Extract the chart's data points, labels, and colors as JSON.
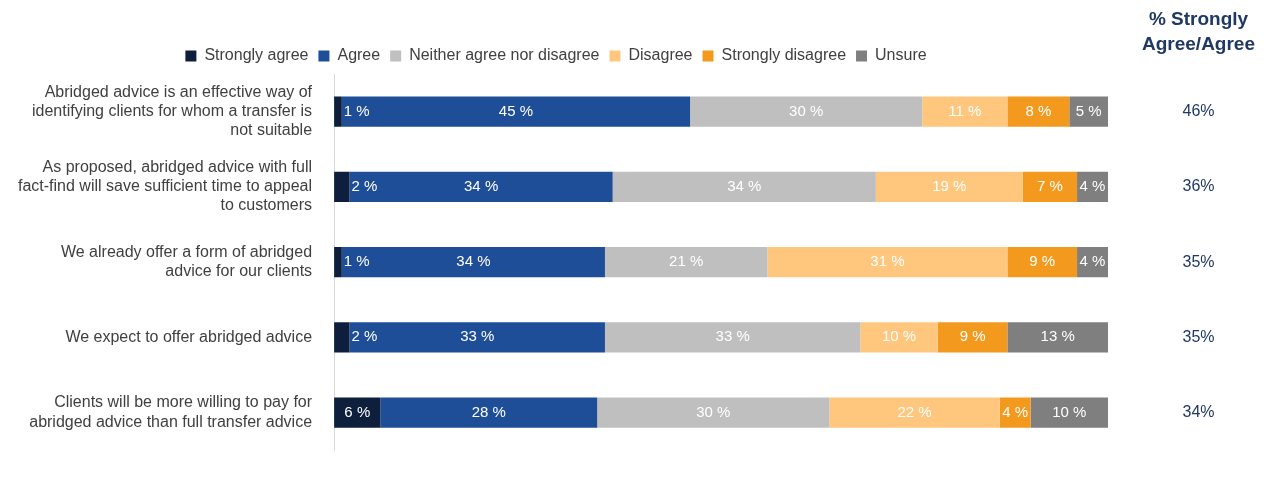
{
  "chart_data": {
    "type": "bar",
    "orientation": "horizontal",
    "stacked": true,
    "legend": "top",
    "tick_labels": "y",
    "categories": [
      "Abridged advice is an effective way of identifying clients for whom a transfer is not suitable",
      "As proposed, abridged advice with full fact-find will save sufficient time to appeal to customers",
      "We already offer a form of abridged advice for our clients",
      "We expect to offer abridged advice",
      "Clients will be more willing to pay for abridged advice than full transfer advice"
    ],
    "series": [
      {
        "name": "Strongly agree",
        "color": "#0e1f3d",
        "values": [
          1,
          2,
          1,
          2,
          6
        ],
        "value_labels": [
          "1 %",
          "2 %",
          "1 %",
          "2 %",
          "6 %"
        ]
      },
      {
        "name": "Agree",
        "color": "#1f4e99",
        "values": [
          45,
          34,
          34,
          33,
          28
        ],
        "value_labels": [
          "45 %",
          "34 %",
          "34 %",
          "33 %",
          "28 %"
        ]
      },
      {
        "name": "Neither agree nor disagree",
        "color": "#bfbfbf",
        "values": [
          30,
          34,
          21,
          33,
          30
        ],
        "value_labels": [
          "30 %",
          "34 %",
          "21 %",
          "33 %",
          "30 %"
        ]
      },
      {
        "name": "Disagree",
        "color": "#ffc77d",
        "values": [
          11,
          19,
          31,
          10,
          22
        ],
        "value_labels": [
          "11 %",
          "19 %",
          "31 %",
          "10 %",
          "22 %"
        ]
      },
      {
        "name": "Strongly disagree",
        "color": "#f39a1e",
        "values": [
          8,
          7,
          9,
          9,
          4
        ],
        "value_labels": [
          "8 %",
          "7 %",
          "9 %",
          "9 %",
          "4 %"
        ]
      },
      {
        "name": "Unsure",
        "color": "#7f7f7f",
        "values": [
          5,
          4,
          4,
          13,
          10
        ],
        "value_labels": [
          "5 %",
          "4 %",
          "4 %",
          "13 %",
          "10 %"
        ]
      }
    ],
    "annotations": [
      "% Strongly Agree/Agree",
      "46%",
      "36%",
      "35%",
      "35%",
      "34%"
    ]
  }
}
